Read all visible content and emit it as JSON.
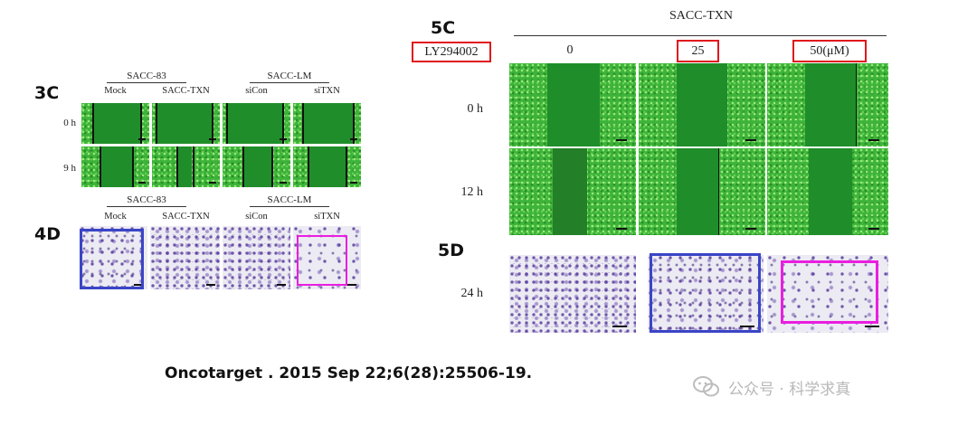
{
  "figure_3c": {
    "label": "3C",
    "groups": [
      "SACC-83",
      "SACC-LM"
    ],
    "columns": [
      "Mock",
      "SACC-TXN",
      "siCon",
      "siTXN"
    ],
    "rows": [
      "0 h",
      "9 h"
    ]
  },
  "figure_4d": {
    "label": "4D",
    "groups": [
      "SACC-83",
      "SACC-LM"
    ],
    "columns": [
      "Mock",
      "SACC-TXN",
      "siCon",
      "siTXN"
    ]
  },
  "figure_5c": {
    "label": "5C",
    "group": "SACC-TXN",
    "treatment": "LY294002",
    "doses": [
      "0",
      "25",
      "50(μM)"
    ],
    "rows": [
      "0 h",
      "12 h"
    ]
  },
  "figure_5d": {
    "label": "5D",
    "row": "24 h"
  },
  "citation": "Oncotarget . 2015 Sep 22;6(28):25506-19.",
  "watermark": "公众号 · 科学求真",
  "colors": {
    "highlight_red": "#e0161c",
    "highlight_blue": "#3a45c6",
    "highlight_magenta": "#ea1ee0",
    "cell_green": "#3db33a",
    "stain_purple": "#5a3a9a"
  }
}
